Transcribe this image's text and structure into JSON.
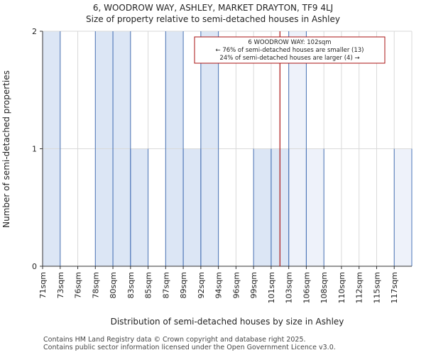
{
  "chart_data": {
    "type": "bar",
    "title": [
      "6, WOODROW WAY, ASHLEY, MARKET DRAYTON, TF9 4LJ",
      "Size of property relative to semi-detached houses in Ashley"
    ],
    "xlabel": "Distribution of semi-detached houses by size in Ashley",
    "ylabel": "Number of semi-detached properties",
    "categories": [
      "71sqm",
      "73sqm",
      "76sqm",
      "78sqm",
      "80sqm",
      "83sqm",
      "85sqm",
      "87sqm",
      "89sqm",
      "92sqm",
      "94sqm",
      "96sqm",
      "99sqm",
      "101sqm",
      "103sqm",
      "106sqm",
      "108sqm",
      "110sqm",
      "112sqm",
      "115sqm",
      "117sqm"
    ],
    "values": [
      2,
      0,
      0,
      2,
      2,
      1,
      0,
      2,
      1,
      2,
      0,
      0,
      1,
      1,
      2,
      1,
      0,
      0,
      0,
      0,
      1
    ],
    "ylim": [
      0,
      2
    ],
    "yticks": [
      0,
      1,
      2
    ],
    "grid": true,
    "marker": {
      "value": 102,
      "unit": "sqm",
      "position_in_bins": 13.5
    },
    "highlight_from_bin": 14,
    "annotation": {
      "lines": [
        "6 WOODROW WAY: 102sqm",
        "← 76% of semi-detached houses are smaller (13)",
        "24% of semi-detached houses are larger (4) →"
      ]
    },
    "colors": {
      "bar": "#dce6f5",
      "bar_light": "#eef2fa",
      "bar_edge": "#4a74b8",
      "marker": "#aa1111",
      "grid": "#d9d9d9"
    }
  },
  "footer": {
    "line1": "Contains HM Land Registry data © Crown copyright and database right 2025.",
    "line2": "Contains public sector information licensed under the Open Government Licence v3.0."
  }
}
